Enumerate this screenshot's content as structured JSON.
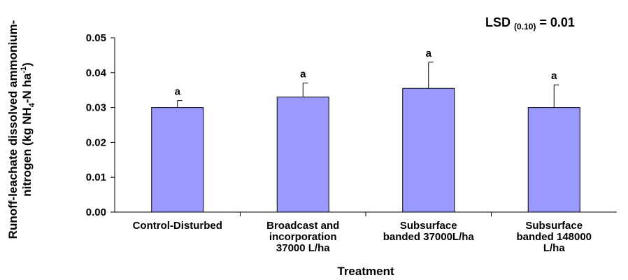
{
  "chart_data": {
    "type": "bar",
    "categories": [
      [
        "Control-Disturbed"
      ],
      [
        "Broadcast and",
        "incorporation",
        "37000 L/ha"
      ],
      [
        "Subsurface",
        "banded 37000L/ha"
      ],
      [
        "Subsurface",
        "banded 148000",
        "L/ha"
      ]
    ],
    "values": [
      0.03,
      0.033,
      0.0355,
      0.03
    ],
    "error_upper": [
      0.032,
      0.037,
      0.043,
      0.0365
    ],
    "significance_letters": [
      "a",
      "a",
      "a",
      "a"
    ],
    "xlabel": "Treatment",
    "ylabel_line1": "Runoff-leachate dissolved ammonium-",
    "ylabel_line2": {
      "pre": "nitrogen (kg NH",
      "sub": "4",
      "mid": "-N ha",
      "sup": "-1",
      "post": ")"
    },
    "ylim": [
      0,
      0.05
    ],
    "yticks": [
      "0.00",
      "0.01",
      "0.02",
      "0.03",
      "0.04",
      "0.05"
    ],
    "lsd_annotation": {
      "main": "LSD ",
      "sub": "(0.10)",
      "rest": " = 0.01"
    },
    "bar_color": "#9999ff",
    "bar_stroke": "#000000",
    "grid": false,
    "legend": "none"
  }
}
